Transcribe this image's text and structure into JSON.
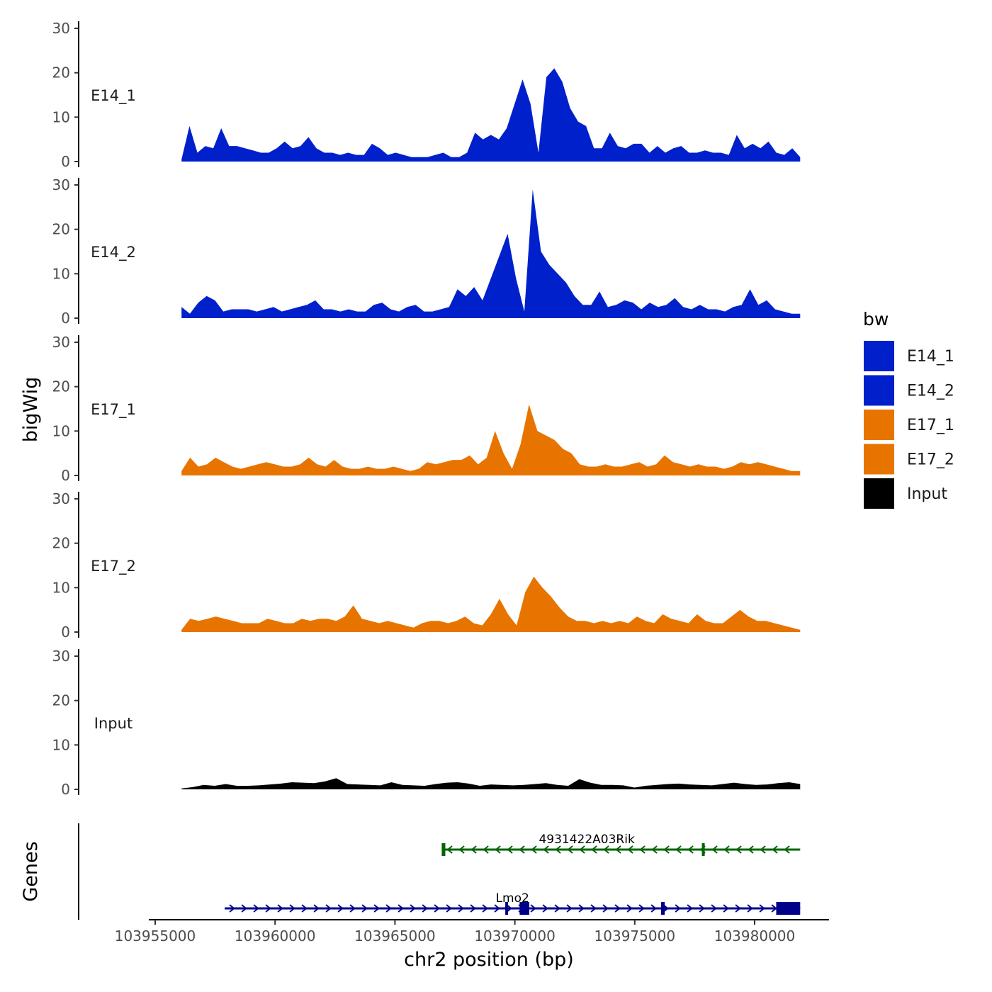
{
  "chart_data": {
    "type": "area",
    "description_title": "",
    "xlabel": "chr2 position (bp)",
    "ylabel": "bigWig",
    "genes_label": "Genes",
    "xlim": [
      103954800,
      103983200
    ],
    "data_x_range": [
      103956100,
      103981900
    ],
    "x_ticks": [
      103955000,
      103960000,
      103965000,
      103970000,
      103975000,
      103980000
    ],
    "x_tick_labels": [
      "103955000",
      "103960000",
      "103965000",
      "103970000",
      "103975000",
      "103980000"
    ],
    "ylim": [
      0,
      31
    ],
    "y_ticks": [
      0,
      10,
      20,
      30
    ],
    "y_tick_labels": [
      "0",
      "10",
      "20",
      "30"
    ],
    "legend": {
      "title": "bw",
      "entries": [
        {
          "label": "E14_1",
          "color": "#0020CC"
        },
        {
          "label": "E14_2",
          "color": "#0020CC"
        },
        {
          "label": "E17_1",
          "color": "#E87400"
        },
        {
          "label": "E17_2",
          "color": "#E87400"
        },
        {
          "label": "Input",
          "color": "#000000"
        }
      ]
    },
    "series": [
      {
        "name": "E14_1",
        "color": "#0020CC",
        "values": [
          0.5,
          8,
          2,
          3.5,
          3,
          7.5,
          3.5,
          3.5,
          3,
          2.5,
          2,
          2,
          3,
          4.5,
          3,
          3.5,
          5.5,
          3,
          2,
          2,
          1.5,
          2,
          1.5,
          1.5,
          4,
          3,
          1.5,
          2,
          1.5,
          1,
          1,
          1,
          1.5,
          2,
          1,
          1,
          2,
          6.5,
          5,
          6,
          5,
          7.5,
          13,
          18.5,
          13,
          2,
          19,
          21,
          18,
          12,
          9,
          8,
          3,
          3,
          6.5,
          3.5,
          3,
          4,
          4,
          2,
          3.5,
          2,
          3,
          3.5,
          2,
          2,
          2.5,
          2,
          2,
          1.5,
          6,
          3,
          4,
          3,
          4.5,
          2,
          1.5,
          3,
          1
        ]
      },
      {
        "name": "E14_2",
        "color": "#0020CC",
        "values": [
          2.5,
          1,
          3.5,
          5,
          4,
          1.5,
          2,
          2,
          2,
          1.5,
          2,
          2.5,
          1.5,
          2,
          2.5,
          3,
          4,
          2,
          2,
          1.5,
          2,
          1.5,
          1.5,
          3,
          3.5,
          2,
          1.5,
          2.5,
          3,
          1.5,
          1.5,
          2,
          2.5,
          6.5,
          5,
          7,
          4,
          9,
          14,
          19,
          9,
          1.5,
          29,
          15,
          12,
          10,
          8,
          5,
          3,
          3,
          6,
          2.5,
          3,
          4,
          3.5,
          2,
          3.5,
          2.5,
          3,
          4.5,
          2.5,
          2,
          3,
          2,
          2,
          1.5,
          2.5,
          3,
          6.5,
          3,
          4,
          2,
          1.5,
          1,
          1
        ]
      },
      {
        "name": "E17_1",
        "color": "#E87400",
        "values": [
          1,
          4,
          2,
          2.5,
          4,
          3,
          2,
          1.5,
          2,
          2.5,
          3,
          2.5,
          2,
          2,
          2.5,
          4,
          2.5,
          2,
          3.5,
          2,
          1.5,
          1.5,
          2,
          1.5,
          1.5,
          2,
          1.5,
          1,
          1.5,
          3,
          2.5,
          3,
          3.5,
          3.5,
          4.5,
          2.5,
          4,
          10,
          5,
          1.5,
          7,
          16,
          10,
          9,
          8,
          6,
          5,
          2.5,
          2,
          2,
          2.5,
          2,
          2,
          2.5,
          3,
          2,
          2.5,
          4.5,
          3,
          2.5,
          2,
          2.5,
          2,
          2,
          1.5,
          2,
          3,
          2.5,
          3,
          2.5,
          2,
          1.5,
          1,
          1
        ]
      },
      {
        "name": "E17_2",
        "color": "#E87400",
        "values": [
          0.5,
          3,
          2.5,
          3,
          3.5,
          3,
          2.5,
          2,
          2,
          2,
          3,
          2.5,
          2,
          2,
          3,
          2.5,
          3,
          3,
          2.5,
          3.5,
          6,
          3,
          2.5,
          2,
          2.5,
          2,
          1.5,
          1,
          2,
          2.5,
          2.5,
          2,
          2.5,
          3.5,
          2,
          1.5,
          4,
          7.5,
          4,
          1.5,
          9,
          12.5,
          10,
          8,
          5.5,
          3.5,
          2.5,
          2.5,
          2,
          2.5,
          2,
          2.5,
          2,
          3.5,
          2.5,
          2,
          4,
          3,
          2.5,
          2,
          4,
          2.5,
          2,
          2,
          3.5,
          5,
          3.5,
          2.5,
          2.5,
          2,
          1.5,
          1,
          0.5
        ]
      },
      {
        "name": "Input",
        "color": "#000000",
        "values": [
          0.2,
          0.5,
          1,
          0.8,
          1.2,
          0.8,
          0.8,
          0.9,
          1.1,
          1.3,
          1.6,
          1.5,
          1.4,
          1.8,
          2.5,
          1.2,
          1.1,
          1,
          0.9,
          1.6,
          1,
          0.9,
          0.8,
          1.2,
          1.5,
          1.6,
          1.3,
          0.8,
          1.1,
          1,
          0.9,
          1,
          1.2,
          1.4,
          1,
          0.8,
          2.3,
          1.5,
          1,
          1,
          0.9,
          0.4,
          0.8,
          1,
          1.2,
          1.3,
          1.1,
          1,
          0.9,
          1.2,
          1.5,
          1.2,
          1,
          1.1,
          1.4,
          1.6,
          1.2
        ]
      }
    ],
    "genes": [
      {
        "name": "4931422A03Rik",
        "color": "#006400",
        "strand": "-",
        "start": 103967000,
        "end": 103981900,
        "label_position": 103973000,
        "exons": [
          [
            103966950,
            103967100
          ],
          [
            103977800,
            103977860
          ]
        ]
      },
      {
        "name": "Lmo2",
        "color": "#00008B",
        "strand": "+",
        "start": 103957900,
        "end": 103981900,
        "label_position": 103969900,
        "exons": [
          [
            103969600,
            103969700
          ],
          [
            103970200,
            103970600
          ],
          [
            103976100,
            103976250
          ],
          [
            103980900,
            103981900
          ]
        ]
      }
    ]
  }
}
